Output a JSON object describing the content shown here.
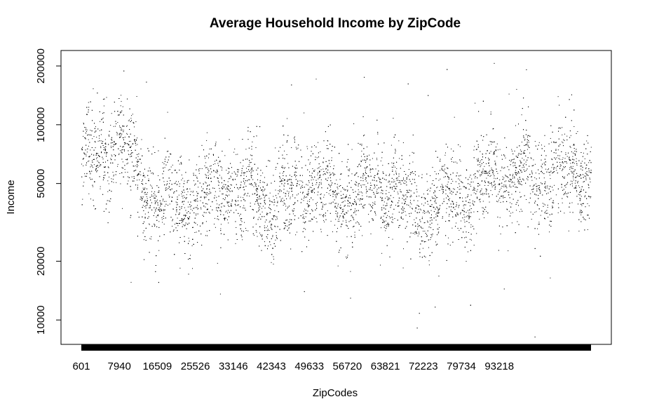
{
  "chart_data": {
    "type": "scatter",
    "title": "Average Household Income by ZipCode",
    "xlabel": "ZipCodes",
    "ylabel": "Income",
    "y_scale": "log",
    "ylim": [
      7500,
      240000
    ],
    "y_ticks": [
      10000,
      20000,
      50000,
      100000,
      200000
    ],
    "y_tick_labels": [
      "10000",
      "20000",
      "50000",
      "100000",
      "200000"
    ],
    "x_tick_labels": [
      "601",
      "7940",
      "16509",
      "25526",
      "33146",
      "42343",
      "49633",
      "56720",
      "63821",
      "72223",
      "79734",
      "93218"
    ],
    "grid": false,
    "legend": "none",
    "point_color": "#000000",
    "x_axis_rug": true,
    "series": [
      {
        "x": [
          "601",
          "7940",
          "16509",
          "25526",
          "33146",
          "42343",
          "49633",
          "56720",
          "63821",
          "72223",
          "79734",
          "93218"
        ],
        "y": [
          60000,
          80000,
          40000,
          42000,
          48000,
          38000,
          50000,
          42000,
          48000,
          36000,
          45000,
          55000
        ]
      }
    ]
  }
}
